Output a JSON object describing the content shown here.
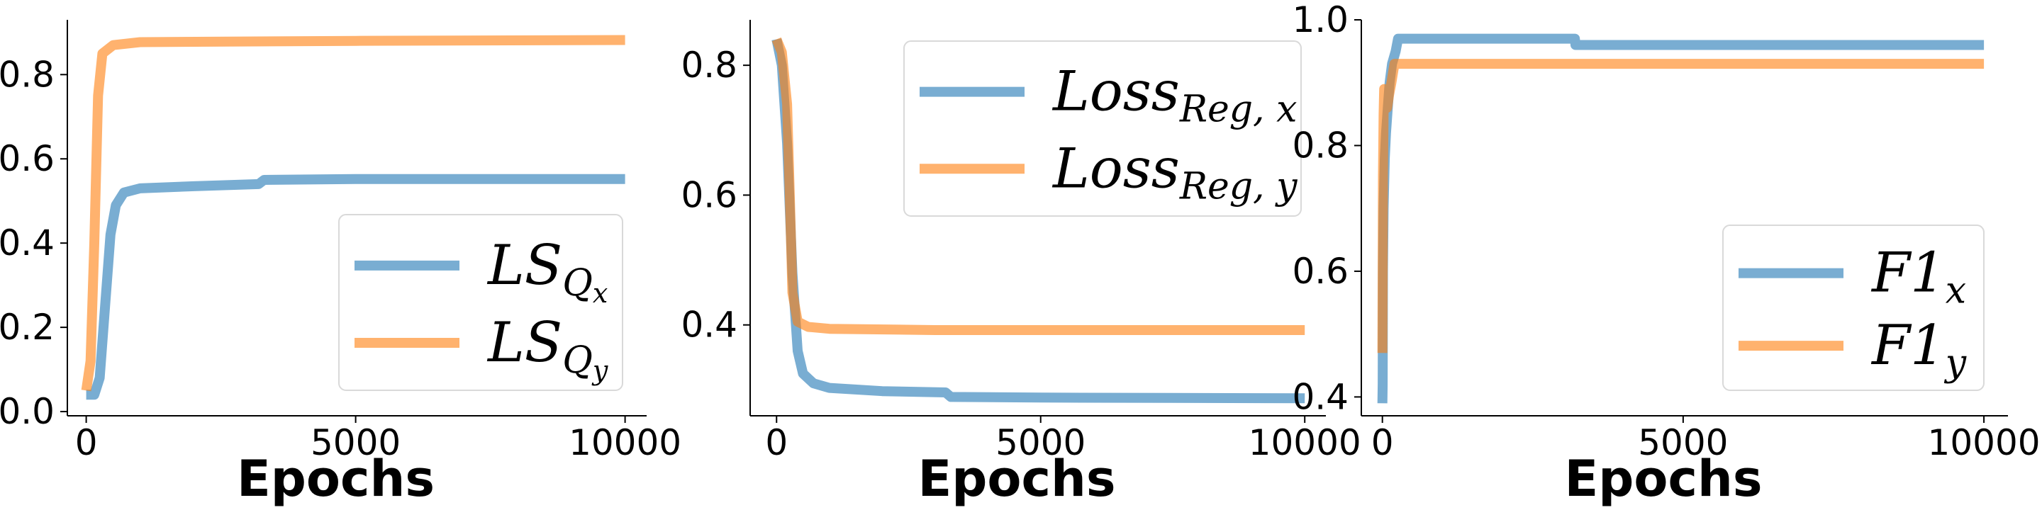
{
  "chart_data": [
    {
      "type": "line",
      "xlabel": "Epochs",
      "ylabel": "",
      "xlim": [
        -350,
        10400
      ],
      "ylim": [
        -0.01,
        0.93
      ],
      "xticks": [
        0,
        5000,
        10000
      ],
      "xtick_labels": [
        "0",
        "5000",
        "10000"
      ],
      "yticks": [
        0.0,
        0.2,
        0.4,
        0.6,
        0.8
      ],
      "ytick_labels": [
        "0.0",
        "0.2",
        "0.4",
        "0.6",
        "0.8"
      ],
      "legend_position": "lower-right",
      "grid": false,
      "series": [
        {
          "name": "LS_Qx",
          "legend": {
            "base": "LS",
            "sub": "Q",
            "subsub": "x"
          },
          "color": "#1f77b4",
          "points": [
            [
              0,
              0.04
            ],
            [
              150,
              0.04
            ],
            [
              250,
              0.08
            ],
            [
              350,
              0.25
            ],
            [
              450,
              0.42
            ],
            [
              550,
              0.49
            ],
            [
              700,
              0.52
            ],
            [
              1000,
              0.53
            ],
            [
              2000,
              0.535
            ],
            [
              3200,
              0.54
            ],
            [
              3300,
              0.55
            ],
            [
              5000,
              0.552
            ],
            [
              10000,
              0.552
            ]
          ]
        },
        {
          "name": "LS_Qy",
          "legend": {
            "base": "LS",
            "sub": "Q",
            "subsub": "y"
          },
          "color": "#ff7f0e",
          "points": [
            [
              0,
              0.05
            ],
            [
              80,
              0.12
            ],
            [
              150,
              0.4
            ],
            [
              220,
              0.75
            ],
            [
              300,
              0.85
            ],
            [
              500,
              0.87
            ],
            [
              1000,
              0.877
            ],
            [
              5000,
              0.88
            ],
            [
              10000,
              0.882
            ]
          ]
        }
      ]
    },
    {
      "type": "line",
      "xlabel": "Epochs",
      "ylabel": "",
      "xlim": [
        -500,
        10400
      ],
      "ylim": [
        0.26,
        0.87
      ],
      "xticks": [
        0,
        5000,
        10000
      ],
      "xtick_labels": [
        "0",
        "5000",
        "10000"
      ],
      "yticks": [
        0.4,
        0.6,
        0.8
      ],
      "ytick_labels": [
        "0.4",
        "0.6",
        "0.8"
      ],
      "legend_position": "upper-right",
      "grid": false,
      "series": [
        {
          "name": "Loss_Reg,x",
          "legend": {
            "base": "Loss",
            "sub": "Reg, x"
          },
          "color": "#1f77b4",
          "points": [
            [
              0,
              0.84
            ],
            [
              100,
              0.8
            ],
            [
              200,
              0.68
            ],
            [
              300,
              0.48
            ],
            [
              400,
              0.36
            ],
            [
              500,
              0.325
            ],
            [
              700,
              0.31
            ],
            [
              1000,
              0.303
            ],
            [
              2000,
              0.298
            ],
            [
              3200,
              0.296
            ],
            [
              3300,
              0.289
            ],
            [
              5000,
              0.288
            ],
            [
              10000,
              0.287
            ]
          ]
        },
        {
          "name": "Loss_Reg,y",
          "legend": {
            "base": "Loss",
            "sub": "Reg, y"
          },
          "color": "#ff7f0e",
          "points": [
            [
              0,
              0.84
            ],
            [
              100,
              0.82
            ],
            [
              200,
              0.74
            ],
            [
              250,
              0.6
            ],
            [
              300,
              0.45
            ],
            [
              400,
              0.405
            ],
            [
              600,
              0.397
            ],
            [
              1000,
              0.394
            ],
            [
              3000,
              0.392
            ],
            [
              10000,
              0.392
            ]
          ]
        }
      ]
    },
    {
      "type": "line",
      "xlabel": "Epochs",
      "ylabel": "",
      "xlim": [
        -350,
        10400
      ],
      "ylim": [
        0.37,
        1.0
      ],
      "xticks": [
        0,
        5000,
        10000
      ],
      "xtick_labels": [
        "0",
        "5000",
        "10000"
      ],
      "yticks": [
        0.4,
        0.6,
        0.8,
        1.0
      ],
      "ytick_labels": [
        "0.4",
        "0.6",
        "0.8",
        "1.0"
      ],
      "legend_position": "lower-right",
      "grid": false,
      "series": [
        {
          "name": "F1_x",
          "legend": {
            "base": "F1",
            "sub": "x"
          },
          "color": "#1f77b4",
          "points": [
            [
              0,
              0.39
            ],
            [
              5,
              0.42
            ],
            [
              10,
              0.6
            ],
            [
              20,
              0.7
            ],
            [
              40,
              0.78
            ],
            [
              60,
              0.82
            ],
            [
              90,
              0.86
            ],
            [
              120,
              0.9
            ],
            [
              160,
              0.93
            ],
            [
              220,
              0.95
            ],
            [
              260,
              0.97
            ],
            [
              3200,
              0.97
            ],
            [
              3210,
              0.96
            ],
            [
              10000,
              0.96
            ]
          ]
        },
        {
          "name": "F1_y",
          "legend": {
            "base": "F1",
            "sub": "y"
          },
          "color": "#ff7f0e",
          "points": [
            [
              0,
              0.47
            ],
            [
              5,
              0.6
            ],
            [
              10,
              0.75
            ],
            [
              20,
              0.85
            ],
            [
              30,
              0.89
            ],
            [
              50,
              0.88
            ],
            [
              80,
              0.86
            ],
            [
              110,
              0.88
            ],
            [
              150,
              0.9
            ],
            [
              200,
              0.93
            ],
            [
              10000,
              0.93
            ]
          ]
        }
      ]
    }
  ]
}
